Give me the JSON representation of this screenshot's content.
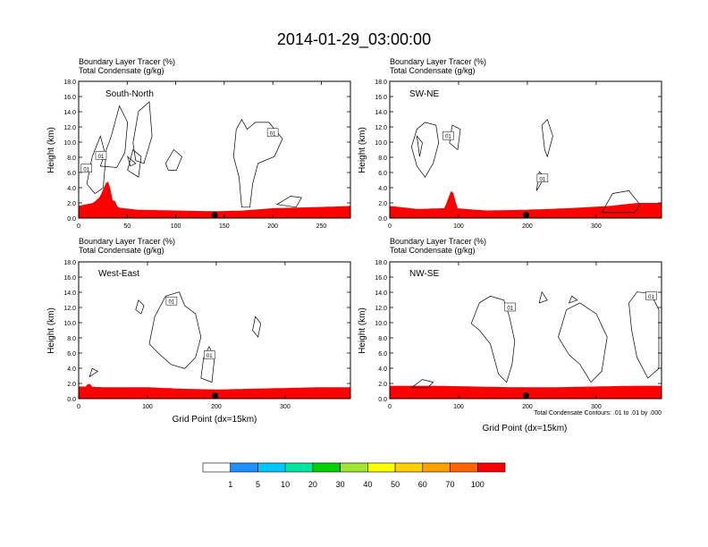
{
  "figure": {
    "title": "2014-01-29_03:00:00",
    "contour_note": "Total Condensate Contours: .01 to .01 by .000",
    "colorbar": {
      "labels": [
        "1",
        "5",
        "10",
        "20",
        "30",
        "40",
        "50",
        "60",
        "70",
        "100"
      ],
      "colors": [
        "#ffffff",
        "#1e90ff",
        "#00c8ff",
        "#00e8a0",
        "#00d000",
        "#a0e632",
        "#ffff00",
        "#ffd000",
        "#ffa000",
        "#ff6400",
        "#ff0000"
      ]
    }
  },
  "chart_data": [
    {
      "type": "heatmap",
      "panel": "South-North",
      "field_label": "Boundary Layer Tracer   (%)",
      "contour_label": "Total Condensate   (g/kg)",
      "xlabel": "",
      "ylabel": "Height (km)",
      "xlim": [
        0,
        280
      ],
      "ylim": [
        0,
        18
      ],
      "xticks": [
        "0",
        "50",
        "100",
        "150",
        "200",
        "250"
      ],
      "xtick_values": [
        0,
        50,
        100,
        150,
        200,
        250
      ],
      "yticks": [
        "0.0",
        "2.0",
        "4.0",
        "6.0",
        "8.0",
        "10.0",
        "12.0",
        "14.0",
        "16.0",
        "18.0"
      ],
      "marker_x": 140,
      "contour_values": [
        "01",
        "01",
        "01"
      ],
      "layer_top": [
        [
          0,
          1.6
        ],
        [
          15,
          2.0
        ],
        [
          22,
          2.8
        ],
        [
          28,
          4.6
        ],
        [
          33,
          2.6
        ],
        [
          40,
          1.4
        ],
        [
          60,
          1.1
        ],
        [
          100,
          1.0
        ],
        [
          140,
          0.9
        ],
        [
          170,
          1.0
        ],
        [
          200,
          1.3
        ],
        [
          230,
          1.4
        ],
        [
          260,
          1.5
        ],
        [
          280,
          1.6
        ]
      ],
      "peaks": [
        [
          20,
          2.2
        ],
        [
          30,
          4.8
        ],
        [
          36,
          2.4
        ]
      ],
      "contour_label_pos": [
        [
          8,
          6.5
        ],
        [
          23,
          8.2
        ],
        [
          200,
          11.2
        ]
      ]
    },
    {
      "type": "heatmap",
      "panel": "SW-NE",
      "field_label": "Boundary Layer Tracer   (%)",
      "contour_label": "Total Condensate   (g/kg)",
      "xlabel": "",
      "ylabel": "Height (km)",
      "xlim": [
        0,
        395
      ],
      "ylim": [
        0,
        18
      ],
      "xticks": [
        "0",
        "100",
        "200",
        "300"
      ],
      "xtick_values": [
        0,
        100,
        200,
        300
      ],
      "yticks": [
        "0.0",
        "2.0",
        "4.0",
        "6.0",
        "8.0",
        "10.0",
        "12.0",
        "14.0",
        "16.0",
        "18.0"
      ],
      "marker_x": 198,
      "contour_values": [
        "01",
        "01"
      ],
      "layer_top": [
        [
          0,
          1.6
        ],
        [
          40,
          1.2
        ],
        [
          80,
          1.3
        ],
        [
          88,
          3.4
        ],
        [
          95,
          1.3
        ],
        [
          140,
          1.0
        ],
        [
          200,
          1.1
        ],
        [
          260,
          1.3
        ],
        [
          320,
          1.6
        ],
        [
          360,
          2.0
        ],
        [
          395,
          2.0
        ]
      ],
      "peaks": [
        [
          90,
          3.6
        ]
      ],
      "contour_label_pos": [
        [
          85,
          10.8
        ],
        [
          222,
          5.2
        ]
      ]
    },
    {
      "type": "heatmap",
      "panel": "West-East",
      "field_label": "Boundary Layer Tracer   (%)",
      "contour_label": "Total Condensate   (g/kg)",
      "xlabel": "Grid Point (dx=15km)",
      "ylabel": "Height (km)",
      "xlim": [
        0,
        395
      ],
      "ylim": [
        0,
        18
      ],
      "xticks": [
        "0",
        "100",
        "200",
        "300"
      ],
      "xtick_values": [
        0,
        100,
        200,
        300
      ],
      "yticks": [
        "0.0",
        "2.0",
        "4.0",
        "6.0",
        "8.0",
        "10.0",
        "12.0",
        "14.0",
        "16.0",
        "18.0"
      ],
      "marker_x": 198,
      "contour_values": [
        "01",
        "01"
      ],
      "layer_top": [
        [
          0,
          1.6
        ],
        [
          40,
          1.5
        ],
        [
          100,
          1.5
        ],
        [
          150,
          1.3
        ],
        [
          200,
          1.2
        ],
        [
          250,
          1.3
        ],
        [
          300,
          1.4
        ],
        [
          350,
          1.5
        ],
        [
          395,
          1.5
        ]
      ],
      "peaks": [
        [
          15,
          2.0
        ]
      ],
      "contour_label_pos": [
        [
          135,
          12.8
        ],
        [
          190,
          5.7
        ]
      ]
    },
    {
      "type": "heatmap",
      "panel": "NW-SE",
      "field_label": "Boundary Layer Tracer   (%)",
      "contour_label": "Total Condensate   (g/kg)",
      "xlabel": "Grid Point (dx=15km)",
      "ylabel": "Height (km)",
      "xlim": [
        0,
        395
      ],
      "ylim": [
        0,
        18
      ],
      "xticks": [
        "0",
        "100",
        "200",
        "300"
      ],
      "xtick_values": [
        0,
        100,
        200,
        300
      ],
      "yticks": [
        "0.0",
        "2.0",
        "4.0",
        "6.0",
        "8.0",
        "10.0",
        "12.0",
        "14.0",
        "16.0",
        "18.0"
      ],
      "marker_x": 198,
      "contour_values": [
        "01",
        "01"
      ],
      "layer_top": [
        [
          0,
          1.7
        ],
        [
          60,
          1.7
        ],
        [
          120,
          1.6
        ],
        [
          180,
          1.5
        ],
        [
          240,
          1.5
        ],
        [
          300,
          1.6
        ],
        [
          360,
          1.7
        ],
        [
          395,
          1.7
        ]
      ],
      "peaks": [],
      "contour_label_pos": [
        [
          175,
          12.0
        ],
        [
          380,
          13.5
        ]
      ]
    }
  ]
}
